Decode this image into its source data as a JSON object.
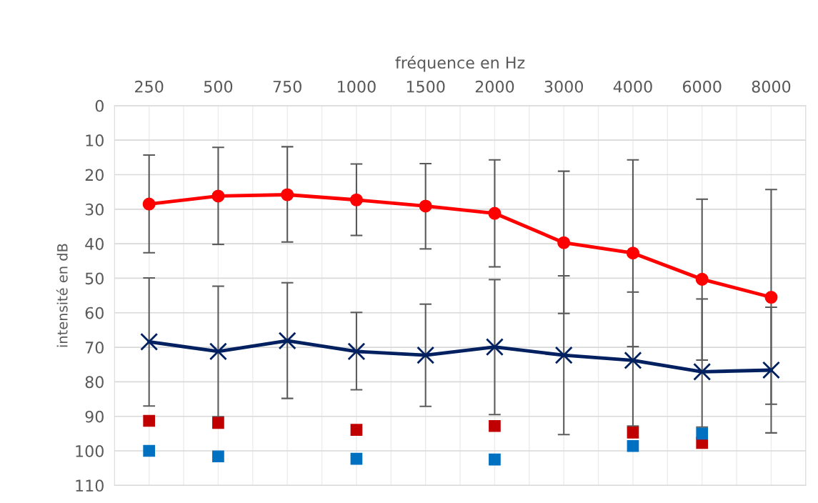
{
  "chart_data": {
    "type": "line",
    "xlabel": "fréquence en Hz",
    "ylabel": "intensité en dB",
    "categories": [
      "250",
      "500",
      "750",
      "1000",
      "1500",
      "2000",
      "3000",
      "4000",
      "6000",
      "8000"
    ],
    "ylim": [
      110,
      0
    ],
    "yticks": [
      0,
      10,
      20,
      30,
      40,
      50,
      60,
      70,
      80,
      90,
      100,
      110
    ],
    "grid": true,
    "series": [
      {
        "color": "#ff0000",
        "marker": "circle",
        "values": [
          28.5,
          26.2,
          25.8,
          27.3,
          29.1,
          31.2,
          39.7,
          42.7,
          50.3,
          55.5
        ],
        "errors": [
          [
            14.3,
            42.6
          ],
          [
            12.1,
            40.2
          ],
          [
            11.9,
            39.5
          ],
          [
            16.9,
            37.6
          ],
          [
            16.8,
            41.5
          ],
          [
            15.7,
            46.7
          ],
          [
            19.0,
            60.2
          ],
          [
            15.7,
            69.8
          ],
          [
            27.1,
            73.7
          ],
          [
            24.3,
            86.5
          ]
        ]
      },
      {
        "color": "#002060",
        "marker": "cross",
        "values": [
          68.4,
          71.2,
          68.1,
          71.2,
          72.3,
          69.9,
          72.3,
          73.8,
          77.1,
          76.6
        ],
        "errors": [
          [
            49.9,
            87.0
          ],
          [
            52.3,
            90.1
          ],
          [
            51.3,
            84.8
          ],
          [
            59.9,
            82.3
          ],
          [
            57.5,
            87.1
          ],
          [
            50.4,
            89.5
          ],
          [
            49.3,
            95.3
          ],
          [
            54.0,
            92.8
          ],
          [
            56.0,
            93.1
          ],
          [
            58.4,
            94.8
          ]
        ]
      },
      {
        "type": "scatter",
        "color": "#c00000",
        "marker": "square",
        "values": [
          91.3,
          91.9,
          null,
          93.9,
          null,
          92.8,
          null,
          94.7,
          97.7,
          null
        ]
      },
      {
        "type": "scatter",
        "color": "#0070c0",
        "marker": "square",
        "values": [
          100.0,
          101.6,
          null,
          102.3,
          null,
          102.5,
          null,
          98.6,
          95.0,
          null
        ]
      }
    ]
  }
}
